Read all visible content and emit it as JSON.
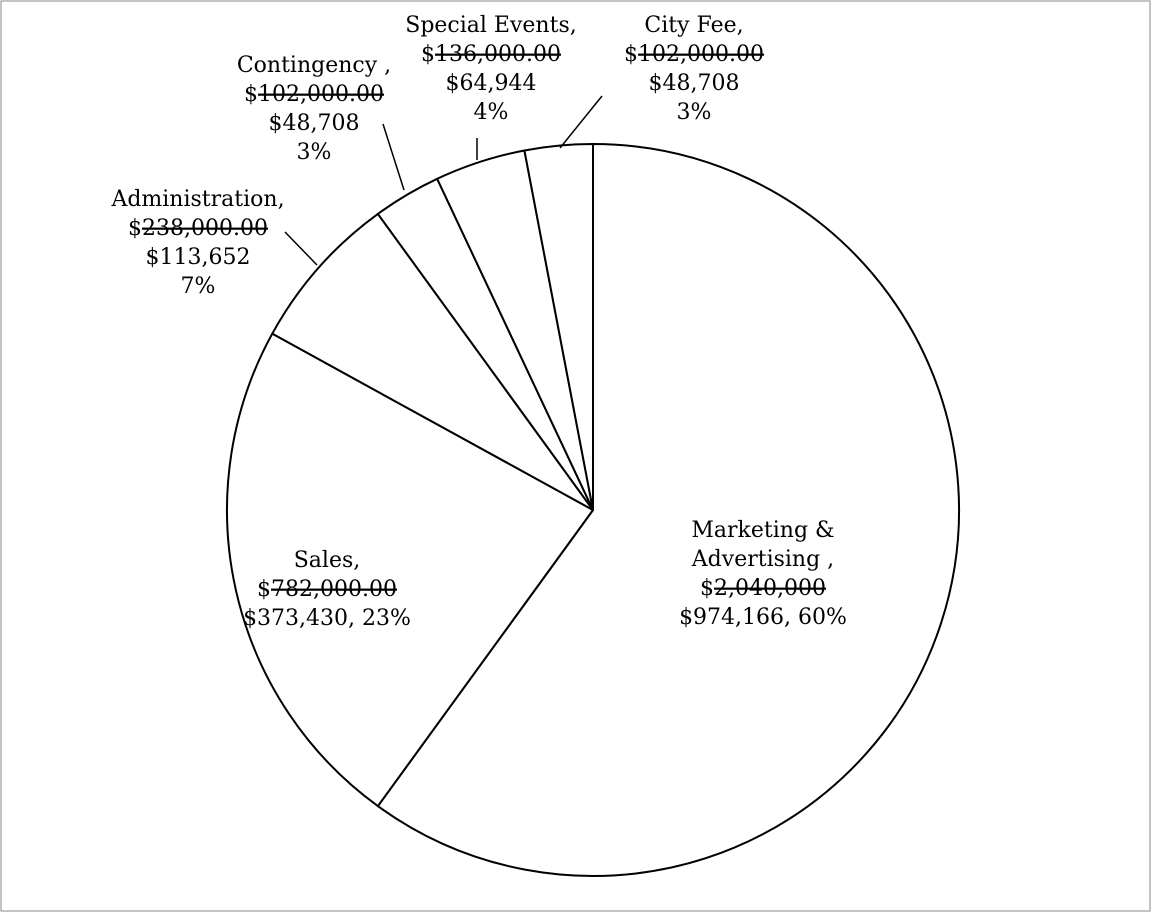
{
  "chart_data": {
    "type": "pie",
    "title": "",
    "start_angle_deg": 0,
    "direction": "clockwise",
    "legend": "none",
    "slices": [
      {
        "name": "Marketing & Advertising",
        "value": 974166,
        "percent_label": "60%",
        "label_lines": [
          {
            "text": "Marketing &"
          },
          {
            "text": "Advertising ,"
          },
          {
            "pre": "$",
            "struck": "2,040,000"
          },
          {
            "text": "$974,166, 60%"
          }
        ]
      },
      {
        "name": "Sales",
        "value": 373430,
        "percent_label": "23%",
        "label_lines": [
          {
            "text": "Sales,"
          },
          {
            "pre": "$",
            "struck": "782,000.00"
          },
          {
            "text": "$373,430, 23%"
          }
        ]
      },
      {
        "name": "Administration",
        "value": 113652,
        "percent_label": "7%",
        "label_lines": [
          {
            "text": "Administration,"
          },
          {
            "pre": "$",
            "struck": "238,000.00"
          },
          {
            "text": "$113,652"
          },
          {
            "text": "7%"
          }
        ]
      },
      {
        "name": "Contingency",
        "value": 48708,
        "percent_label": "3%",
        "label_lines": [
          {
            "text": "Contingency ,"
          },
          {
            "pre": "$",
            "struck": "102,000.00"
          },
          {
            "text": "$48,708"
          },
          {
            "text": "3%"
          }
        ]
      },
      {
        "name": "Special Events",
        "value": 64944,
        "percent_label": "4%",
        "label_lines": [
          {
            "text": "Special Events,"
          },
          {
            "pre": "$",
            "struck": "136,000.00"
          },
          {
            "text": "$64,944"
          },
          {
            "text": "4%"
          }
        ]
      },
      {
        "name": "City Fee",
        "value": 48708,
        "percent_label": "3%",
        "label_lines": [
          {
            "text": "City Fee,"
          },
          {
            "pre": "$",
            "struck": "102,000.00"
          },
          {
            "text": "$48,708"
          },
          {
            "text": "3%"
          }
        ]
      }
    ]
  }
}
